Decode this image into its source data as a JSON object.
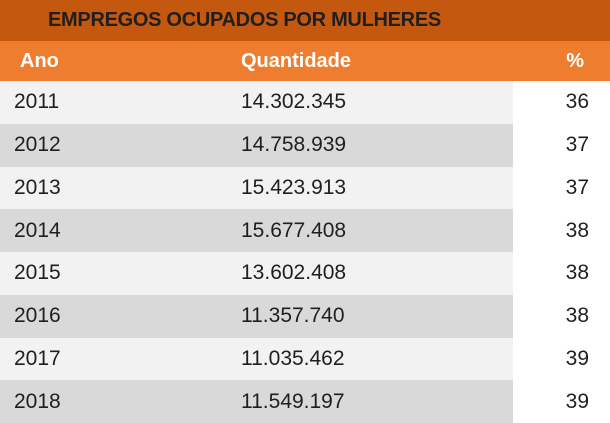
{
  "chart_data": {
    "type": "table",
    "title": "EMPREGOS OCUPADOS POR MULHERES",
    "columns": [
      "Ano",
      "Quantidade",
      "%"
    ],
    "rows": [
      {
        "year": "2011",
        "quantity": "14.302.345",
        "percent": "36"
      },
      {
        "year": "2012",
        "quantity": "14.758.939",
        "percent": "37"
      },
      {
        "year": "2013",
        "quantity": "15.423.913",
        "percent": "37"
      },
      {
        "year": "2014",
        "quantity": "15.677.408",
        "percent": "38"
      },
      {
        "year": "2015",
        "quantity": "13.602.408",
        "percent": "38"
      },
      {
        "year": "2016",
        "quantity": "11.357.740",
        "percent": "38"
      },
      {
        "year": "2017",
        "quantity": "11.035.462",
        "percent": "39"
      },
      {
        "year": "2018",
        "quantity": "11.549.197",
        "percent": "39"
      }
    ]
  },
  "colors": {
    "title_bar": "#c4580f",
    "header_row": "#ee7d30",
    "row_light": "#f2f2f2",
    "row_dark": "#d9d9d9"
  }
}
